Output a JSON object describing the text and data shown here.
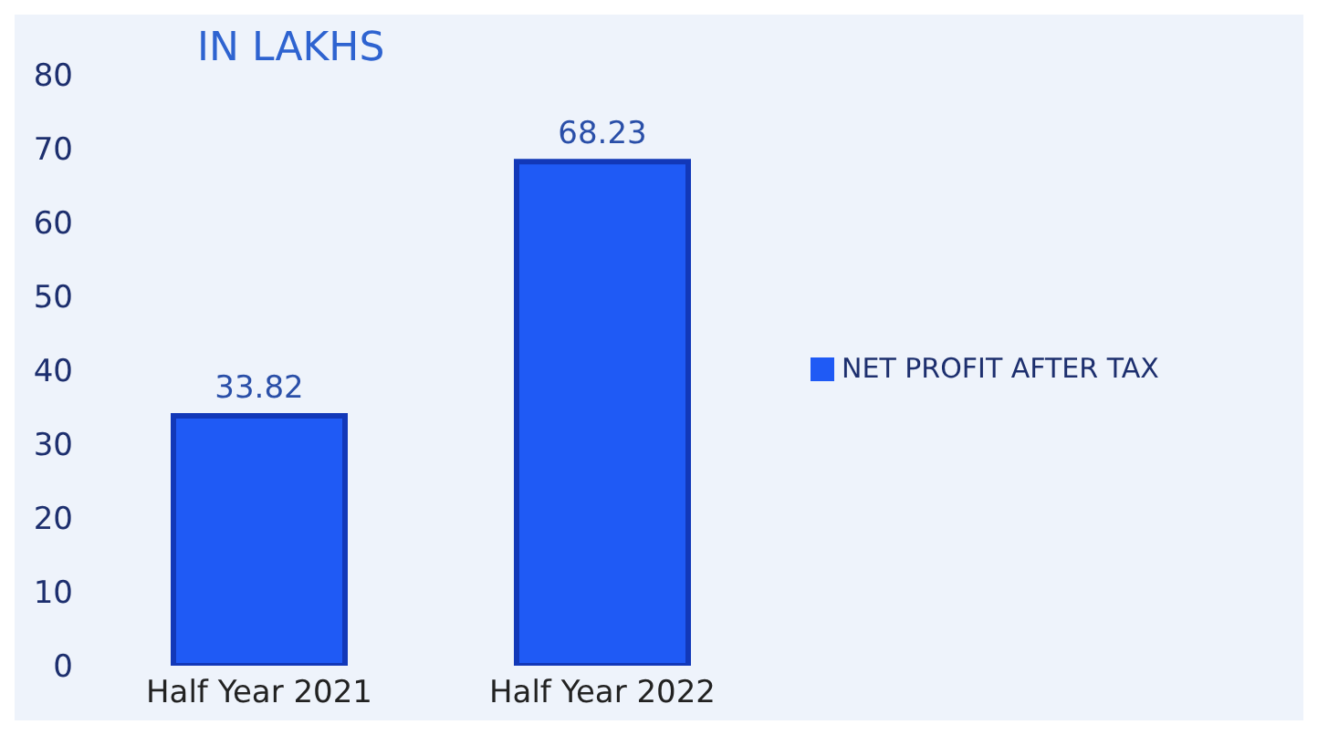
{
  "chart_data": {
    "type": "bar",
    "title": "IN LAKHS",
    "categories": [
      "Half Year 2021",
      "Half Year 2022"
    ],
    "series": [
      {
        "name": "NET PROFIT AFTER TAX",
        "color": "#1f5af5",
        "values": [
          33.82,
          68.23
        ]
      }
    ],
    "ylim": [
      0,
      80
    ],
    "yticks": [
      0,
      10,
      20,
      30,
      40,
      50,
      60,
      70,
      80
    ],
    "legend": "right",
    "data_labels": true
  }
}
